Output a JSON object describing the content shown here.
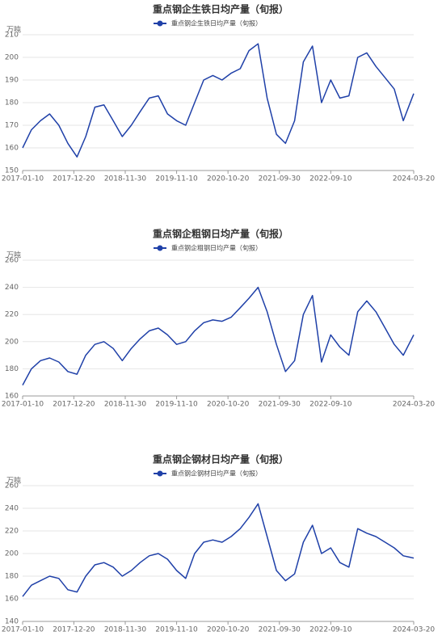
{
  "chart_data": [
    {
      "type": "line",
      "title": "重点钢企生铁日均产量（旬报）",
      "y_label": "万吨",
      "x": [
        "2017-01-10",
        "2017-03-10",
        "2017-05-10",
        "2017-07-10",
        "2017-09-10",
        "2017-11-10",
        "2018-01-10",
        "2018-03-10",
        "2018-05-10",
        "2018-07-10",
        "2018-09-10",
        "2018-11-10",
        "2019-01-10",
        "2019-03-10",
        "2019-05-10",
        "2019-07-10",
        "2019-09-10",
        "2019-11-10",
        "2020-01-10",
        "2020-03-10",
        "2020-05-10",
        "2020-07-10",
        "2020-09-10",
        "2020-11-10",
        "2021-01-10",
        "2021-03-10",
        "2021-05-10",
        "2021-07-10",
        "2021-09-10",
        "2021-11-10",
        "2022-01-10",
        "2022-03-10",
        "2022-05-10",
        "2022-07-10",
        "2022-09-10",
        "2022-11-10",
        "2023-01-10",
        "2023-03-10",
        "2023-05-10",
        "2023-07-10",
        "2023-09-10",
        "2023-11-10",
        "2024-01-10",
        "2024-03-20"
      ],
      "series": [
        {
          "name": "重点钢企生铁日均产量（旬报）",
          "color": "#1f40a8",
          "values": [
            160,
            168,
            172,
            175,
            170,
            162,
            156,
            165,
            178,
            179,
            172,
            165,
            170,
            176,
            182,
            183,
            175,
            172,
            170,
            180,
            190,
            192,
            190,
            193,
            195,
            203,
            206,
            182,
            166,
            162,
            172,
            198,
            205,
            180,
            190,
            182,
            183,
            200,
            202,
            196,
            191,
            186,
            172,
            184
          ]
        }
      ],
      "xlim": [
        "2017-01-10",
        "2024-03-20"
      ],
      "xticks": [
        "2017-01-10",
        "2017-12-20",
        "2018-11-30",
        "2019-11-10",
        "2020-10-20",
        "2021-09-30",
        "2022-09-10",
        "2024-03-20"
      ],
      "ylim": [
        150,
        210
      ],
      "yticks": [
        150,
        160,
        170,
        180,
        190,
        200,
        210
      ],
      "grid": true
    },
    {
      "type": "line",
      "title": "重点钢企粗钢日均产量（旬报）",
      "y_label": "万吨",
      "x": [
        "2017-01-10",
        "2017-03-10",
        "2017-05-10",
        "2017-07-10",
        "2017-09-10",
        "2017-11-10",
        "2018-01-10",
        "2018-03-10",
        "2018-05-10",
        "2018-07-10",
        "2018-09-10",
        "2018-11-10",
        "2019-01-10",
        "2019-03-10",
        "2019-05-10",
        "2019-07-10",
        "2019-09-10",
        "2019-11-10",
        "2020-01-10",
        "2020-03-10",
        "2020-05-10",
        "2020-07-10",
        "2020-09-10",
        "2020-11-10",
        "2021-01-10",
        "2021-03-10",
        "2021-05-10",
        "2021-07-10",
        "2021-09-10",
        "2021-11-10",
        "2022-01-10",
        "2022-03-10",
        "2022-05-10",
        "2022-07-10",
        "2022-09-10",
        "2022-11-10",
        "2023-01-10",
        "2023-03-10",
        "2023-05-10",
        "2023-07-10",
        "2023-09-10",
        "2023-11-10",
        "2024-01-10",
        "2024-03-20"
      ],
      "series": [
        {
          "name": "重点钢企粗钢日均产量（旬报）",
          "color": "#1f40a8",
          "values": [
            168,
            180,
            186,
            188,
            185,
            178,
            176,
            190,
            198,
            200,
            195,
            186,
            195,
            202,
            208,
            210,
            205,
            198,
            200,
            208,
            214,
            216,
            215,
            218,
            225,
            232,
            240,
            222,
            198,
            178,
            186,
            220,
            234,
            185,
            205,
            196,
            190,
            222,
            230,
            222,
            210,
            198,
            190,
            205
          ]
        }
      ],
      "xlim": [
        "2017-01-10",
        "2024-03-20"
      ],
      "xticks": [
        "2017-01-10",
        "2017-12-20",
        "2018-11-30",
        "2019-11-10",
        "2020-10-20",
        "2021-09-30",
        "2022-09-10",
        "2024-03-20"
      ],
      "ylim": [
        160,
        260
      ],
      "yticks": [
        160,
        180,
        200,
        220,
        240,
        260
      ],
      "grid": true
    },
    {
      "type": "line",
      "title": "重点钢企钢材日均产量（旬报）",
      "y_label": "万吨",
      "x": [
        "2017-01-10",
        "2017-03-10",
        "2017-05-10",
        "2017-07-10",
        "2017-09-10",
        "2017-11-10",
        "2018-01-10",
        "2018-03-10",
        "2018-05-10",
        "2018-07-10",
        "2018-09-10",
        "2018-11-10",
        "2019-01-10",
        "2019-03-10",
        "2019-05-10",
        "2019-07-10",
        "2019-09-10",
        "2019-11-10",
        "2020-01-10",
        "2020-03-10",
        "2020-05-10",
        "2020-07-10",
        "2020-09-10",
        "2020-11-10",
        "2021-01-10",
        "2021-03-10",
        "2021-05-10",
        "2021-07-10",
        "2021-09-10",
        "2021-11-10",
        "2022-01-10",
        "2022-03-10",
        "2022-05-10",
        "2022-07-10",
        "2022-09-10",
        "2022-11-10",
        "2023-01-10",
        "2023-03-10",
        "2023-05-10",
        "2023-07-10",
        "2023-09-10",
        "2023-11-10",
        "2024-01-10",
        "2024-03-20"
      ],
      "series": [
        {
          "name": "重点钢企钢材日均产量（旬报）",
          "color": "#1f40a8",
          "values": [
            162,
            172,
            176,
            180,
            178,
            168,
            166,
            180,
            190,
            192,
            188,
            180,
            185,
            192,
            198,
            200,
            195,
            185,
            178,
            200,
            210,
            212,
            210,
            215,
            222,
            232,
            244,
            215,
            185,
            176,
            182,
            210,
            225,
            200,
            205,
            192,
            188,
            222,
            218,
            215,
            210,
            205,
            198,
            196
          ]
        }
      ],
      "xlim": [
        "2017-01-10",
        "2024-03-20"
      ],
      "xticks": [
        "2017-01-10",
        "2017-12-20",
        "2018-11-30",
        "2019-11-10",
        "2020-10-20",
        "2021-09-30",
        "2022-09-10",
        "2024-03-20"
      ],
      "ylim": [
        140,
        260
      ],
      "yticks": [
        140,
        160,
        180,
        200,
        220,
        240,
        260
      ],
      "grid": true
    }
  ]
}
